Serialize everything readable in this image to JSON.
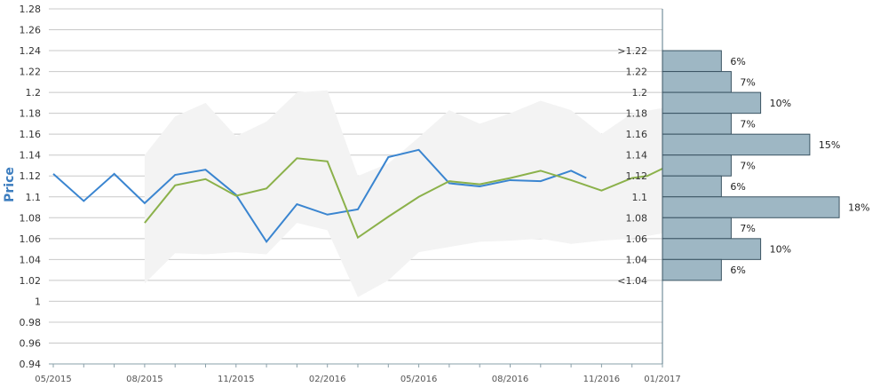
{
  "chart_data": {
    "type": "line",
    "title": "",
    "ylabel": "Price",
    "xlabel": "",
    "ylim": [
      0.94,
      1.28
    ],
    "yticks": [
      "0.94",
      "0.96",
      "0.98",
      "1",
      "1.02",
      "1.04",
      "1.06",
      "1.08",
      "1.1",
      "1.12",
      "1.14",
      "1.16",
      "1.18",
      "1.2",
      "1.22",
      "1.24",
      "1.26",
      "1.28"
    ],
    "xticks": [
      "05/2015",
      "08/2015",
      "11/2015",
      "02/2016",
      "05/2016",
      "08/2016",
      "11/2016",
      "01/2017"
    ],
    "grid": true,
    "series": [
      {
        "color": "#3a85d0",
        "x": [
          "05/2015",
          "06/2015",
          "07/2015",
          "08/2015",
          "09/2015",
          "10/2015",
          "11/2015",
          "12/2015",
          "01/2016",
          "02/2016",
          "03/2016",
          "04/2016",
          "05/2016",
          "06/2016",
          "07/2016",
          "08/2016",
          "09/2016",
          "10/2016",
          "10/2016 end"
        ],
        "values": [
          1.122,
          1.096,
          1.122,
          1.094,
          1.121,
          1.126,
          1.102,
          1.057,
          1.093,
          1.083,
          1.088,
          1.138,
          1.145,
          1.113,
          1.11,
          1.116,
          1.115,
          1.125,
          1.118
        ]
      },
      {
        "color": "#8bb14a",
        "x": [
          "08/2015",
          "09/2015",
          "10/2015",
          "11/2015",
          "12/2015",
          "01/2016",
          "02/2016",
          "03/2016",
          "04/2016",
          "05/2016",
          "06/2016",
          "07/2016",
          "08/2016",
          "09/2016",
          "10/2016",
          "11/2016",
          "12/2016",
          "12/2016 end",
          "01/2017"
        ],
        "values": [
          1.075,
          1.111,
          1.117,
          1.101,
          1.108,
          1.137,
          1.134,
          1.061,
          1.081,
          1.1,
          1.115,
          1.112,
          1.118,
          1.125,
          1.116,
          1.106,
          1.118,
          1.12,
          1.127
        ]
      }
    ],
    "band": {
      "color": "#f3f3f3",
      "x": [
        "08/2015",
        "09/2015",
        "10/2015",
        "11/2015",
        "12/2015",
        "01/2016",
        "02/2016",
        "03/2016",
        "04/2016",
        "05/2016",
        "06/2016",
        "07/2016",
        "08/2016",
        "09/2016",
        "10/2016",
        "11/2016",
        "12/2016",
        "01/2017"
      ],
      "upper": [
        1.14,
        1.177,
        1.19,
        1.158,
        1.172,
        1.2,
        1.202,
        1.12,
        1.132,
        1.157,
        1.183,
        1.17,
        1.18,
        1.192,
        1.183,
        1.16,
        1.18,
        1.185
      ],
      "lower": [
        1.017,
        1.046,
        1.045,
        1.047,
        1.045,
        1.075,
        1.068,
        1.004,
        1.02,
        1.047,
        1.052,
        1.057,
        1.058,
        1.06,
        1.055,
        1.058,
        1.06,
        1.065
      ]
    },
    "histogram": {
      "color": "#9eb7c4",
      "border": "#3b5463",
      "bins": [
        {
          "label": ">1.22",
          "y_from": 1.22,
          "y_to": 1.24,
          "percent": 6,
          "text": "6%"
        },
        {
          "label": "1.22",
          "y_from": 1.2,
          "y_to": 1.22,
          "percent": 7,
          "text": "7%"
        },
        {
          "label": "1.2",
          "y_from": 1.18,
          "y_to": 1.2,
          "percent": 10,
          "text": "10%"
        },
        {
          "label": "1.18",
          "y_from": 1.16,
          "y_to": 1.18,
          "percent": 7,
          "text": "7%"
        },
        {
          "label": "1.16",
          "y_from": 1.14,
          "y_to": 1.16,
          "percent": 15,
          "text": "15%"
        },
        {
          "label": "1.14",
          "y_from": 1.12,
          "y_to": 1.14,
          "percent": 7,
          "text": "7%"
        },
        {
          "label": "1.12",
          "y_from": 1.1,
          "y_to": 1.12,
          "percent": 6,
          "text": "6%"
        },
        {
          "label": "1.1",
          "y_from": 1.08,
          "y_to": 1.1,
          "percent": 18,
          "text": "18%"
        },
        {
          "label": "1.08",
          "y_from": 1.06,
          "y_to": 1.08,
          "percent": 7,
          "text": "7%"
        },
        {
          "label": "1.06",
          "y_from": 1.04,
          "y_to": 1.06,
          "percent": 10,
          "text": "10%"
        },
        {
          "label": "1.04",
          "y_from": 1.02,
          "y_to": 1.04,
          "percent": 6,
          "text": "6%"
        },
        {
          "label": "<1.04",
          "y_from": 1.02,
          "y_to": 1.02,
          "percent": 0,
          "text": ""
        }
      ]
    }
  }
}
